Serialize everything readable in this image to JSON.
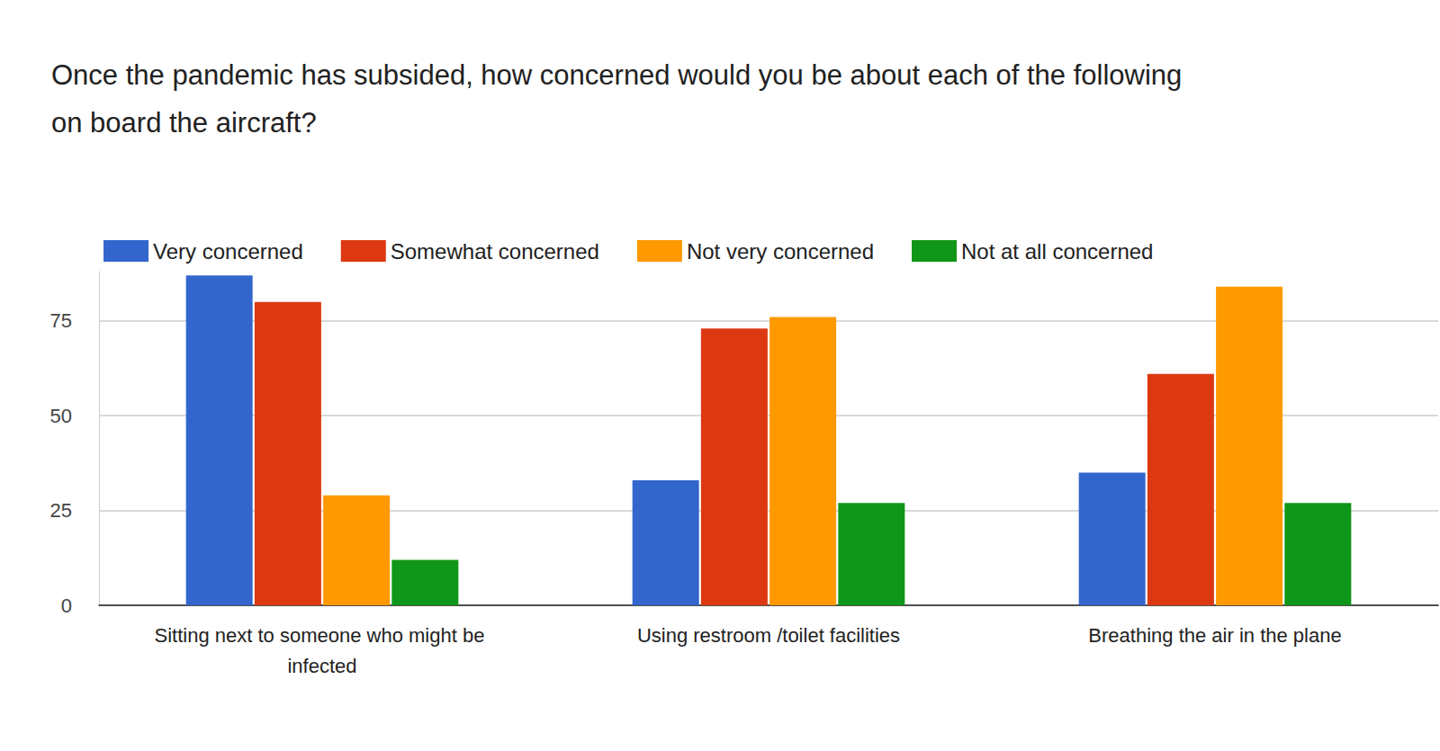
{
  "chart_data": {
    "type": "bar",
    "title": "Once the pandemic has subsided, how concerned would you be about each of the following on board the aircraft?",
    "categories": [
      "Sitting next to someone who might be infected",
      "Using restroom /toilet facilities",
      "Breathing the air in the plane"
    ],
    "series": [
      {
        "name": "Very concerned",
        "color": "#3366cc",
        "values": [
          87,
          33,
          35
        ]
      },
      {
        "name": "Somewhat concerned",
        "color": "#dc3912",
        "values": [
          80,
          73,
          61
        ]
      },
      {
        "name": "Not very concerned",
        "color": "#ff9900",
        "values": [
          29,
          76,
          84
        ]
      },
      {
        "name": "Not at all concerned",
        "color": "#109618",
        "values": [
          12,
          27,
          27
        ]
      }
    ],
    "ylim": [
      0,
      88
    ],
    "yticks": [
      0,
      25,
      50,
      75
    ],
    "grid": true,
    "legend": "top"
  }
}
